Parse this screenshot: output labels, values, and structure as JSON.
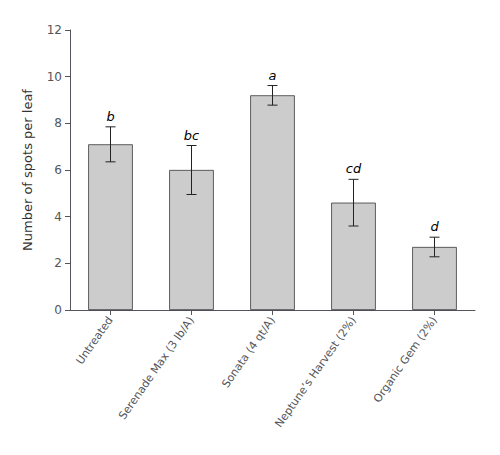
{
  "chart_data": {
    "type": "bar",
    "categories": [
      "Untreated",
      "Serenade Max (3 lb/A)",
      "Sonata (4 qt/A)",
      "Neptune’s Harvest (2%)",
      "Organic Gem (2%)"
    ],
    "values": [
      7.1,
      6.0,
      9.2,
      4.6,
      2.7
    ],
    "errors": [
      0.75,
      1.05,
      0.42,
      1.0,
      0.42
    ],
    "annotations": [
      "b",
      "bc",
      "a",
      "cd",
      "d"
    ],
    "color": "#cccccc",
    "ylabel": "Number of spots per leaf",
    "ylim": [
      0,
      12
    ],
    "yticks": [
      0,
      2,
      4,
      6,
      8,
      10,
      12
    ],
    "grid": false
  }
}
